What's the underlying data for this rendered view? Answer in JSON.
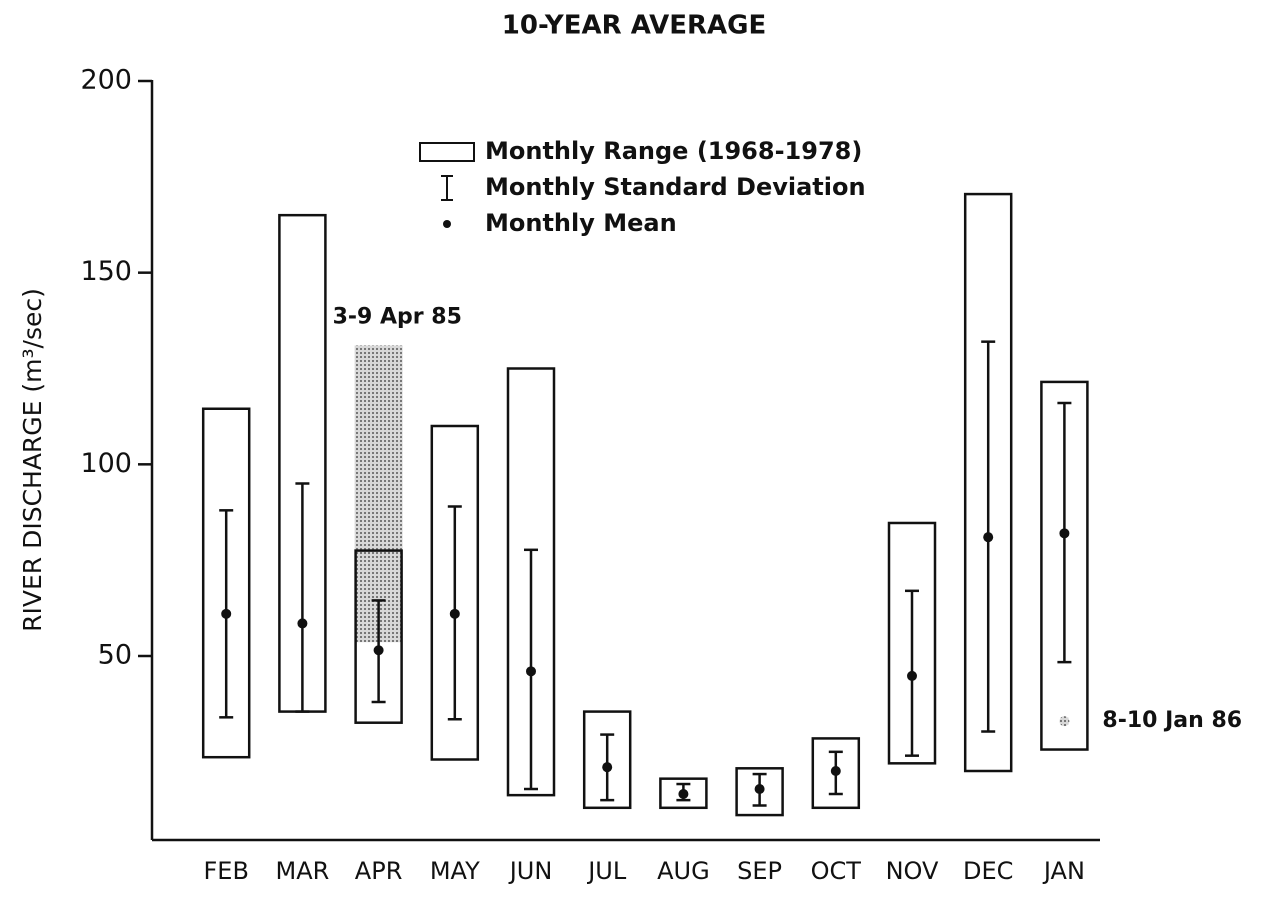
{
  "chart_data": {
    "type": "range",
    "title": "10-YEAR AVERAGE",
    "y_label": "RIVER DISCHARGE (m³/sec)",
    "ylim": [
      2,
      200
    ],
    "yticks": [
      50,
      100,
      150,
      200
    ],
    "categories": [
      "FEB",
      "MAR",
      "APR",
      "MAY",
      "JUN",
      "JUL",
      "AUG",
      "SEP",
      "OCT",
      "NOV",
      "DEC",
      "JAN"
    ],
    "series": [
      {
        "name": "Monthly Range (1968-1978)",
        "values": [
          [
            23.6,
            114.5
          ],
          [
            35.5,
            165
          ],
          [
            32.6,
            77.5
          ],
          [
            23,
            110
          ],
          [
            13.7,
            125
          ],
          [
            10.4,
            35.5
          ],
          [
            10.4,
            18
          ],
          [
            8.5,
            20.7
          ],
          [
            10.4,
            28.5
          ],
          [
            22,
            84.7
          ],
          [
            20,
            170.5
          ],
          [
            25.6,
            121.5
          ]
        ]
      },
      {
        "name": "Monthly Standard Deviation",
        "values": [
          [
            34,
            88
          ],
          [
            35.5,
            95
          ],
          [
            38,
            64.5
          ],
          [
            33.5,
            89
          ],
          [
            15.3,
            77.7
          ],
          [
            12.4,
            29.5
          ],
          [
            12.4,
            16.6
          ],
          [
            11,
            19.2
          ],
          [
            14,
            25
          ],
          [
            24,
            67
          ],
          [
            30.3,
            132
          ],
          [
            48.4,
            116
          ]
        ]
      },
      {
        "name": "Monthly Mean",
        "values": [
          61,
          58.5,
          51.5,
          61,
          46,
          21,
          14,
          15.3,
          20,
          44.8,
          81,
          82
        ]
      }
    ],
    "annotations": [
      {
        "label": "3-9 Apr 85",
        "range": [
          53.6,
          131
        ]
      },
      {
        "label": "8-10 Jan 86",
        "value": 33
      }
    ]
  }
}
